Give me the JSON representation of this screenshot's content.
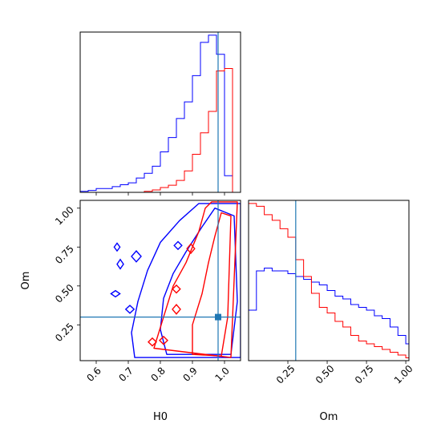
{
  "chart_data": {
    "type": "corner",
    "parameters": [
      "H0",
      "Om"
    ],
    "truths": {
      "H0": 0.98,
      "Om": 0.3
    },
    "colors": {
      "series_a": "#0000ff",
      "series_b": "#ff0000",
      "truth": "#1f77b4"
    },
    "panels": [
      {
        "id": "h0-marginal",
        "type": "histogram-step",
        "x_param": "H0",
        "xlim": [
          0.55,
          1.05
        ],
        "bin_edges": [
          0.55,
          0.575,
          0.6,
          0.625,
          0.65,
          0.675,
          0.7,
          0.725,
          0.75,
          0.775,
          0.8,
          0.825,
          0.85,
          0.875,
          0.9,
          0.925,
          0.95,
          0.975,
          1.0,
          1.025,
          1.05
        ],
        "series": [
          {
            "color": "#0000ff",
            "values": [
              0.2,
              0.4,
              0.8,
              0.8,
              1.2,
              1.6,
              2.0,
              3.0,
              4.0,
              5.5,
              8.5,
              11.5,
              15.5,
              19.0,
              24.5,
              31.5,
              33.0,
              29.0,
              3.5,
              0.0
            ]
          },
          {
            "color": "#ff0000",
            "values": [
              0.0,
              0.0,
              0.0,
              0.0,
              0.0,
              0.0,
              0.0,
              0.0,
              0.2,
              0.5,
              1.0,
              1.5,
              2.5,
              4.5,
              8.0,
              12.5,
              17.0,
              25.5,
              26.0,
              0.0
            ]
          }
        ],
        "xticks": [
          0.6,
          0.7,
          0.8,
          0.9,
          1.0
        ]
      },
      {
        "id": "om-marginal",
        "type": "histogram-step",
        "x_param": "Om",
        "xlim": [
          0.0,
          1.02
        ],
        "bin_edges": [
          0.0,
          0.05,
          0.1,
          0.15,
          0.2,
          0.25,
          0.3,
          0.35,
          0.4,
          0.45,
          0.5,
          0.55,
          0.6,
          0.65,
          0.7,
          0.75,
          0.8,
          0.85,
          0.9,
          0.95,
          1.0,
          1.02
        ],
        "series": [
          {
            "color": "#0000ff",
            "values": [
              0.9,
              1.6,
              1.65,
              1.6,
              1.6,
              1.55,
              1.5,
              1.45,
              1.4,
              1.35,
              1.25,
              1.15,
              1.1,
              1.0,
              0.95,
              0.9,
              0.8,
              0.75,
              0.6,
              0.45,
              0.3
            ]
          },
          {
            "color": "#ff0000",
            "values": [
              2.8,
              2.75,
              2.6,
              2.5,
              2.35,
              2.2,
              1.8,
              1.5,
              1.2,
              0.95,
              0.85,
              0.7,
              0.6,
              0.45,
              0.35,
              0.3,
              0.25,
              0.2,
              0.15,
              0.1,
              0.05
            ]
          }
        ],
        "xticks": [
          0.25,
          0.5,
          0.75,
          1.0
        ],
        "xticklabels": [
          "0.25",
          "0.50",
          "0.75",
          "1.00"
        ],
        "xlabel": "Om"
      },
      {
        "id": "h0-om-joint",
        "type": "contour",
        "x_param": "H0",
        "y_param": "Om",
        "xlim": [
          0.55,
          1.05
        ],
        "ylim": [
          0.02,
          1.05
        ],
        "xticks": [
          0.6,
          0.7,
          0.8,
          0.9,
          1.0
        ],
        "xticklabels": [
          "0.6",
          "0.7",
          "0.8",
          "0.9",
          "1.0"
        ],
        "yticks": [
          0.25,
          0.5,
          0.75,
          1.0
        ],
        "yticklabels": [
          "0.25",
          "0.50",
          "0.75",
          "1.00"
        ],
        "xlabel": "H0",
        "ylabel": "Om",
        "contours": [
          {
            "color": "#0000ff",
            "level": "outer",
            "points": [
              [
                0.72,
                0.04
              ],
              [
                0.71,
                0.2
              ],
              [
                0.73,
                0.4
              ],
              [
                0.76,
                0.6
              ],
              [
                0.8,
                0.78
              ],
              [
                0.86,
                0.92
              ],
              [
                0.92,
                1.03
              ],
              [
                1.05,
                1.03
              ],
              [
                1.05,
                0.04
              ]
            ]
          },
          {
            "color": "#0000ff",
            "level": "inner",
            "points": [
              [
                0.82,
                0.06
              ],
              [
                0.8,
                0.22
              ],
              [
                0.81,
                0.42
              ],
              [
                0.84,
                0.58
              ],
              [
                0.88,
                0.72
              ],
              [
                0.93,
                0.88
              ],
              [
                0.97,
                1.0
              ],
              [
                1.03,
                0.95
              ],
              [
                1.04,
                0.4
              ],
              [
                1.02,
                0.06
              ]
            ]
          },
          {
            "color": "#ff0000",
            "level": "outer",
            "points": [
              [
                0.78,
                0.1
              ],
              [
                0.81,
                0.3
              ],
              [
                0.84,
                0.5
              ],
              [
                0.88,
                0.65
              ],
              [
                0.92,
                0.85
              ],
              [
                0.94,
                1.0
              ],
              [
                0.96,
                1.04
              ],
              [
                1.04,
                1.04
              ],
              [
                1.02,
                0.04
              ]
            ]
          },
          {
            "color": "#ff0000",
            "level": "inner",
            "points": [
              [
                0.9,
                0.06
              ],
              [
                0.9,
                0.25
              ],
              [
                0.93,
                0.45
              ],
              [
                0.95,
                0.65
              ],
              [
                0.97,
                0.82
              ],
              [
                0.99,
                0.97
              ],
              [
                1.02,
                0.95
              ],
              [
                1.01,
                0.3
              ],
              [
                0.99,
                0.05
              ]
            ]
          }
        ],
        "islands": [
          {
            "color": "#0000ff",
            "x": 0.665,
            "y": 0.75,
            "w": 0.018,
            "h": 0.05
          },
          {
            "color": "#0000ff",
            "x": 0.675,
            "y": 0.64,
            "w": 0.02,
            "h": 0.06
          },
          {
            "color": "#0000ff",
            "x": 0.66,
            "y": 0.45,
            "w": 0.028,
            "h": 0.04
          },
          {
            "color": "#0000ff",
            "x": 0.705,
            "y": 0.35,
            "w": 0.026,
            "h": 0.05
          },
          {
            "color": "#0000ff",
            "x": 0.725,
            "y": 0.69,
            "w": 0.03,
            "h": 0.07
          },
          {
            "color": "#0000ff",
            "x": 0.855,
            "y": 0.76,
            "w": 0.024,
            "h": 0.05
          },
          {
            "color": "#ff0000",
            "x": 0.81,
            "y": 0.15,
            "w": 0.025,
            "h": 0.05
          },
          {
            "color": "#ff0000",
            "x": 0.775,
            "y": 0.14,
            "w": 0.025,
            "h": 0.05
          },
          {
            "color": "#ff0000",
            "x": 0.85,
            "y": 0.48,
            "w": 0.024,
            "h": 0.05
          },
          {
            "color": "#ff0000",
            "x": 0.85,
            "y": 0.35,
            "w": 0.025,
            "h": 0.06
          },
          {
            "color": "#ff0000",
            "x": 0.895,
            "y": 0.74,
            "w": 0.024,
            "h": 0.06
          }
        ]
      }
    ]
  }
}
